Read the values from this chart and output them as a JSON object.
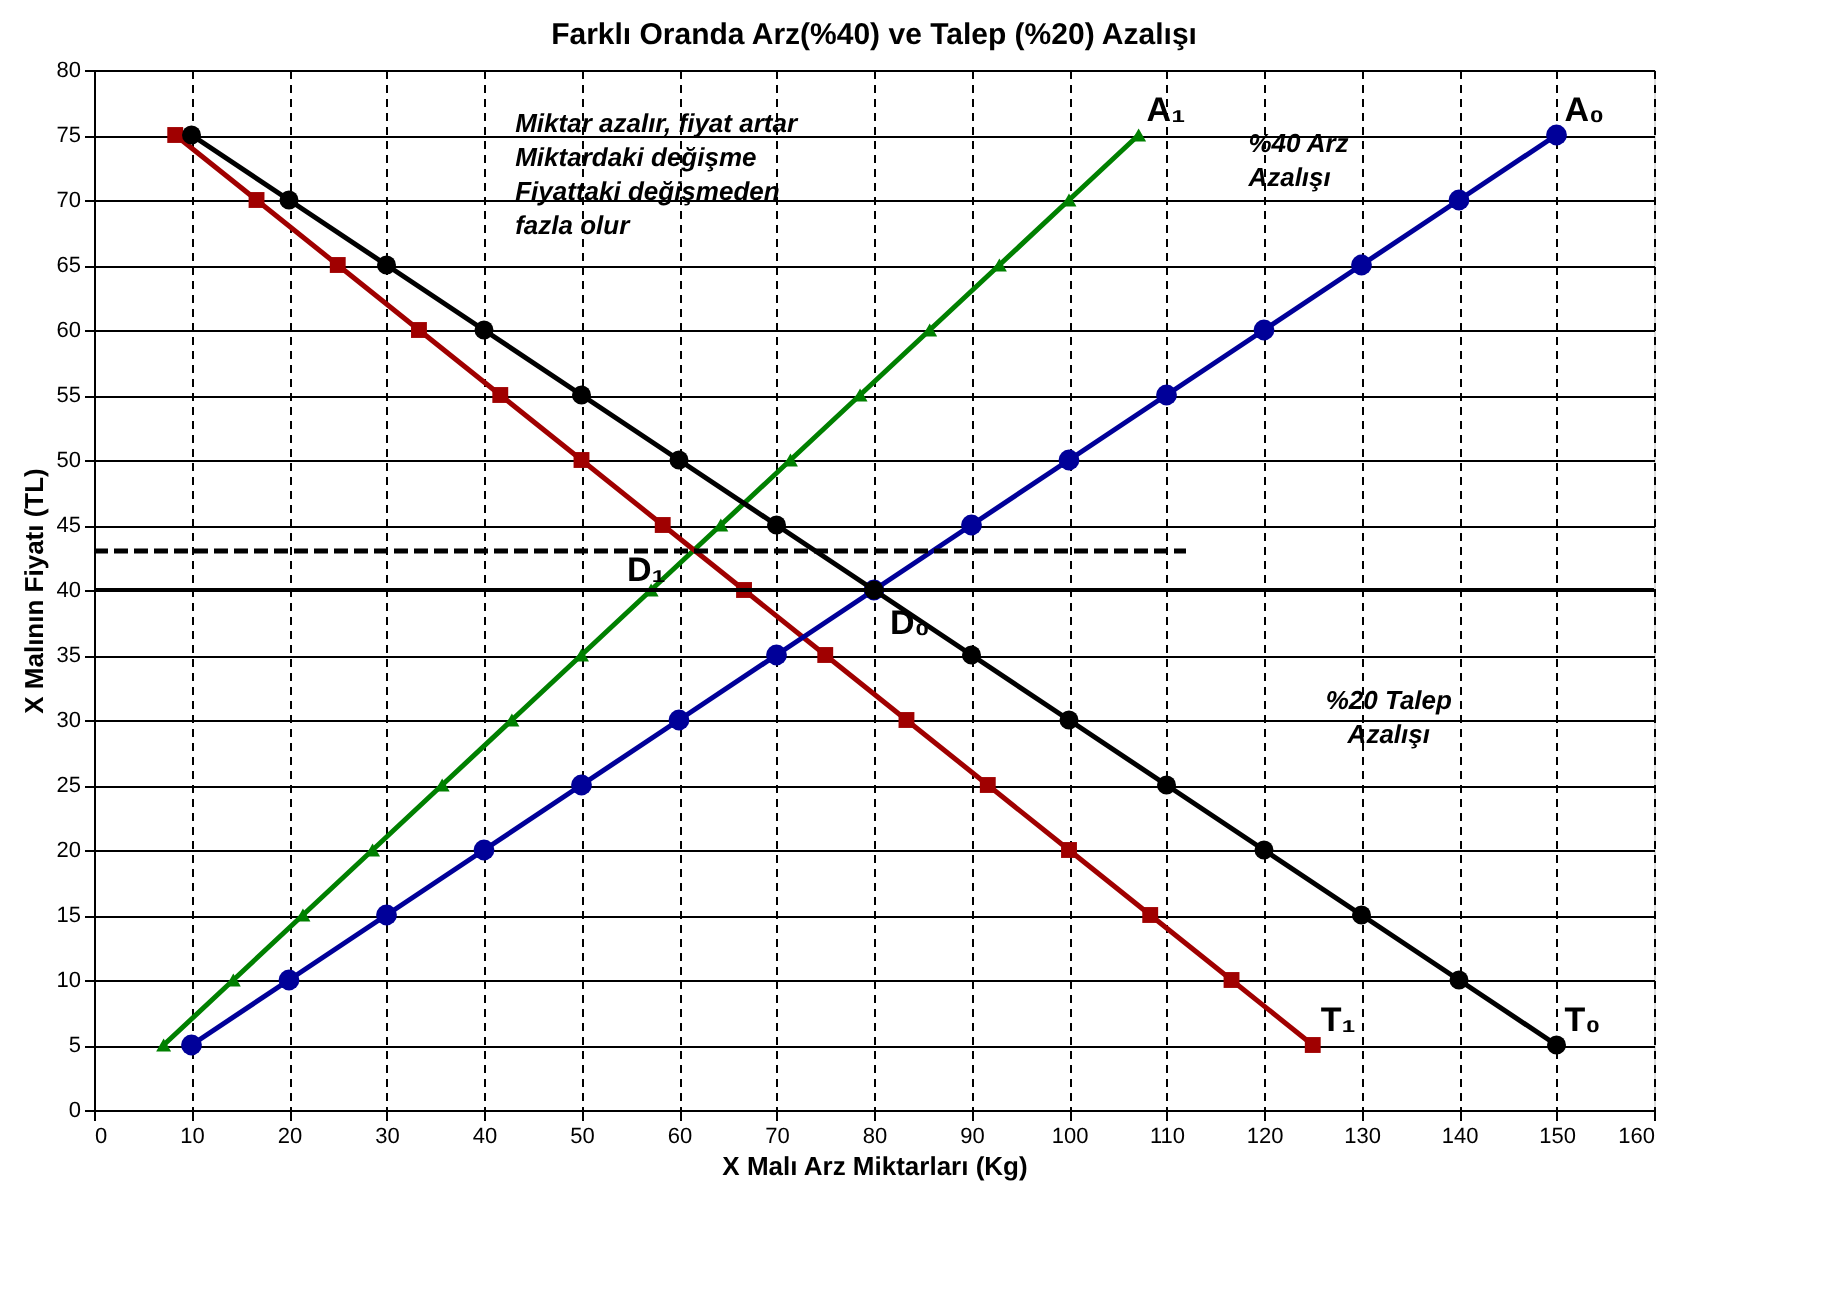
{
  "chart_data": {
    "type": "line",
    "title": "Farklı Oranda Arz(%40)  ve Talep (%20) Azalışı",
    "xlabel": "X Malı Arz Miktarları (Kg)",
    "ylabel": "X Malının Fiyatı (TL)",
    "xlim": [
      0,
      160
    ],
    "xticks": [
      0,
      10,
      20,
      30,
      40,
      50,
      60,
      70,
      80,
      90,
      100,
      110,
      120,
      130,
      140,
      150,
      160
    ],
    "ylim": [
      0,
      80
    ],
    "yticks": [
      0,
      5,
      10,
      15,
      20,
      25,
      30,
      35,
      40,
      45,
      50,
      55,
      60,
      65,
      70,
      75,
      80
    ],
    "grid": true,
    "legend": false,
    "line_style": "solid",
    "series": [
      {
        "name": "A₁",
        "color": "#008000",
        "marker": "triangle",
        "x": [
          7.14,
          14.29,
          21.43,
          28.57,
          35.71,
          42.86,
          50,
          57.14,
          64.29,
          71.43,
          78.57,
          85.71,
          92.86,
          100,
          107.14
        ],
        "values": [
          5,
          10,
          15,
          20,
          25,
          30,
          35,
          40,
          45,
          50,
          55,
          60,
          65,
          70,
          75
        ]
      },
      {
        "name": "T₁",
        "color": "#a00000",
        "marker": "square",
        "x": [
          8.33,
          16.67,
          25,
          33.33,
          41.67,
          50,
          58.33,
          66.67,
          75,
          83.33,
          91.67,
          100,
          108.33,
          116.67,
          125
        ],
        "values": [
          75,
          70,
          65,
          60,
          55,
          50,
          45,
          40,
          35,
          30,
          25,
          20,
          15,
          10,
          5
        ]
      },
      {
        "name": "A₀",
        "color": "#000099",
        "marker": "circle",
        "x": [
          10,
          20,
          30,
          40,
          50,
          60,
          70,
          80,
          90,
          100,
          110,
          120,
          130,
          140,
          150
        ],
        "values": [
          5,
          10,
          15,
          20,
          25,
          30,
          35,
          40,
          45,
          50,
          55,
          60,
          65,
          70,
          75
        ]
      },
      {
        "name": "T₀",
        "color": "#000000",
        "marker": "circle",
        "x": [
          10,
          20,
          30,
          40,
          50,
          60,
          70,
          80,
          90,
          100,
          110,
          120,
          130,
          140,
          150
        ],
        "values": [
          75,
          70,
          65,
          60,
          55,
          50,
          45,
          40,
          35,
          30,
          25,
          20,
          15,
          10,
          5
        ]
      },
      {
        "color": "#000000",
        "marker": "none",
        "line_style": "dashed",
        "x": [
          0,
          112
        ],
        "values": [
          43,
          43
        ]
      }
    ],
    "ref_lines": [
      {
        "axis": "y",
        "value": 40,
        "color": "#000000"
      }
    ],
    "annotations": [
      {
        "text": "D₀",
        "x": 80,
        "y": 40
      },
      {
        "text": "D₁",
        "x": 61.5,
        "y": 43
      },
      "Miktar azalır, fiyat artar\nMiktardaki değişme\nFiyattaki değişmeden\nfazla olur",
      "%40 Arz\nAzalışı",
      "%20 Talep\nAzalışı"
    ]
  }
}
